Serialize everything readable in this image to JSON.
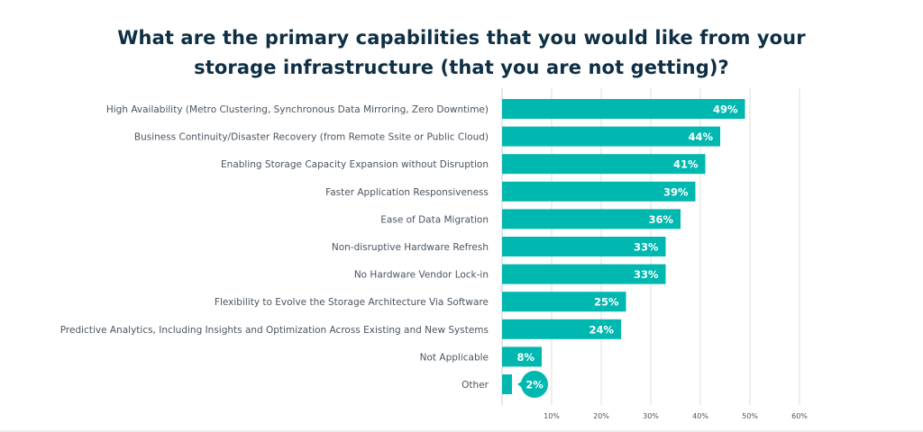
{
  "colors": {
    "bar": "#00b8b0",
    "title": "#0e2f44",
    "text": "#4a5560",
    "value_text": "#ffffff",
    "grid": "#dcdcdc"
  },
  "chart_data": {
    "type": "bar",
    "orientation": "horizontal",
    "title": "What are the primary capabilities that you would like from your storage infrastructure (that you are not getting)?",
    "title_lines": [
      "What are the primary capabilities that you would like from your",
      "storage infrastructure (that you are not getting)?"
    ],
    "categories": [
      "High Availability (Metro Clustering, Synchronous Data Mirroring, Zero Downtime)",
      "Business Continuity/Disaster Recovery (from Remote Ssite or Public Cloud)",
      "Enabling Storage Capacity Expansion without Disruption",
      "Faster Application Responsiveness",
      "Ease of Data Migration",
      "Non-disruptive Hardware Refresh",
      "No Hardware Vendor Lock-in",
      "Flexibility to Evolve the Storage Architecture Via Software",
      "Predictive Analytics, Including Insights and Optimization Across Existing and New Systems",
      "Not Applicable",
      "Other"
    ],
    "values": [
      49,
      44,
      41,
      39,
      36,
      33,
      33,
      25,
      24,
      8,
      2
    ],
    "value_labels": [
      "49%",
      "44%",
      "41%",
      "39%",
      "36%",
      "33%",
      "33%",
      "25%",
      "24%",
      "8%",
      "2%"
    ],
    "xlim": [
      0,
      60
    ],
    "xticks": [
      10,
      20,
      30,
      40,
      50,
      60
    ],
    "xtick_labels": [
      "10%",
      "20%",
      "30%",
      "40%",
      "50%",
      "60%"
    ],
    "xlabel": "",
    "ylabel": "",
    "grid": true,
    "legend": "none"
  }
}
